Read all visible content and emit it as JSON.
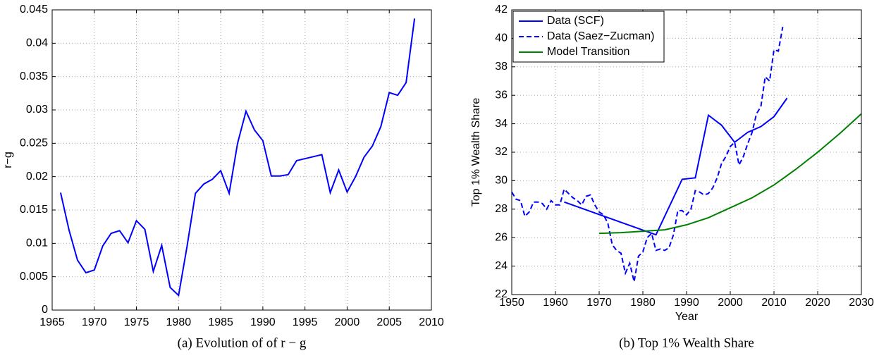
{
  "chart_data": [
    {
      "type": "line",
      "ylabel": "r−g",
      "caption": "(a) Evolution of of r − g",
      "x": [
        1966,
        1967,
        1968,
        1969,
        1970,
        1971,
        1972,
        1973,
        1974,
        1975,
        1976,
        1977,
        1978,
        1979,
        1980,
        1981,
        1982,
        1983,
        1984,
        1985,
        1986,
        1987,
        1988,
        1989,
        1990,
        1991,
        1992,
        1993,
        1994,
        1997,
        1998,
        1999,
        2000,
        2001,
        2002,
        2003,
        2004,
        2005,
        2006,
        2007,
        2008
      ],
      "values": [
        0.0176,
        0.012,
        0.0075,
        0.0056,
        0.006,
        0.0096,
        0.0115,
        0.0119,
        0.0101,
        0.0134,
        0.0121,
        0.0058,
        0.0097,
        0.0034,
        0.0022,
        0.0095,
        0.0175,
        0.0189,
        0.0196,
        0.0209,
        0.0175,
        0.025,
        0.0298,
        0.027,
        0.0254,
        0.0201,
        0.0201,
        0.0203,
        0.0224,
        0.0233,
        0.0176,
        0.021,
        0.0177,
        0.02,
        0.0229,
        0.0246,
        0.0275,
        0.0326,
        0.0322,
        0.0341,
        0.0437
      ],
      "color": "#0000ff",
      "xlim": [
        1965,
        2010
      ],
      "xticks": [
        1965,
        1970,
        1975,
        1980,
        1985,
        1990,
        1995,
        2000,
        2005,
        2010
      ],
      "ylim": [
        0,
        0.045
      ],
      "yticks": [
        0,
        0.005,
        0.01,
        0.015,
        0.02,
        0.025,
        0.03,
        0.035,
        0.04,
        0.045
      ],
      "grid": true
    },
    {
      "type": "line",
      "xlabel": "Year",
      "ylabel": "Top 1% Wealth Share",
      "caption": "(b) Top 1% Wealth Share",
      "series": [
        {
          "name": "Data (SCF)",
          "color": "#0000ff",
          "dash": false,
          "x": [
            1962,
            1983,
            1989,
            1992,
            1995,
            1998,
            2001,
            2004,
            2007,
            2010,
            2013
          ],
          "values": [
            28.5,
            26.2,
            30.1,
            30.2,
            34.6,
            33.9,
            32.7,
            33.4,
            33.8,
            34.5,
            35.8
          ]
        },
        {
          "name": "Data (Saez−Zucman)",
          "color": "#0000ff",
          "dash": true,
          "x": [
            1950,
            1951,
            1952,
            1953,
            1954,
            1955,
            1956,
            1957,
            1958,
            1959,
            1960,
            1961,
            1962,
            1963,
            1964,
            1965,
            1966,
            1967,
            1968,
            1969,
            1970,
            1971,
            1972,
            1973,
            1974,
            1975,
            1976,
            1977,
            1978,
            1979,
            1980,
            1981,
            1982,
            1983,
            1984,
            1985,
            1986,
            1987,
            1988,
            1989,
            1990,
            1991,
            1992,
            1993,
            1994,
            1995,
            1996,
            1997,
            1998,
            1999,
            2000,
            2001,
            2002,
            2003,
            2004,
            2005,
            2006,
            2007,
            2008,
            2009,
            2010,
            2011,
            2012
          ],
          "values": [
            29.2,
            28.7,
            28.6,
            27.5,
            27.8,
            28.5,
            28.5,
            28.4,
            28.0,
            28.6,
            28.3,
            28.3,
            29.4,
            29.1,
            28.8,
            28.6,
            28.3,
            28.9,
            29.0,
            28.3,
            27.8,
            27.6,
            27.0,
            25.5,
            25.1,
            24.9,
            23.5,
            24.2,
            22.9,
            24.7,
            25.0,
            26.0,
            26.3,
            25.1,
            25.2,
            25.1,
            25.3,
            26.2,
            27.9,
            27.9,
            27.6,
            28.0,
            29.3,
            29.2,
            29.0,
            29.1,
            29.5,
            30.2,
            31.2,
            31.7,
            32.4,
            32.7,
            31.1,
            31.7,
            32.6,
            33.4,
            34.7,
            35.2,
            37.3,
            37.0,
            39.2,
            39.1,
            40.8
          ]
        },
        {
          "name": "Model Transition",
          "color": "#008000",
          "dash": false,
          "x": [
            1970,
            1975,
            1980,
            1985,
            1990,
            1995,
            2000,
            2005,
            2010,
            2015,
            2020,
            2025,
            2030
          ],
          "values": [
            26.3,
            26.35,
            26.45,
            26.55,
            26.9,
            27.4,
            28.1,
            28.8,
            29.7,
            30.8,
            32.0,
            33.3,
            34.7
          ]
        }
      ],
      "xlim": [
        1950,
        2030
      ],
      "xticks": [
        1950,
        1960,
        1970,
        1980,
        1990,
        2000,
        2010,
        2020,
        2030
      ],
      "ylim": [
        22,
        42
      ],
      "yticks": [
        22,
        24,
        26,
        28,
        30,
        32,
        34,
        36,
        38,
        40,
        42
      ],
      "grid": true,
      "legend": "upper left"
    }
  ]
}
